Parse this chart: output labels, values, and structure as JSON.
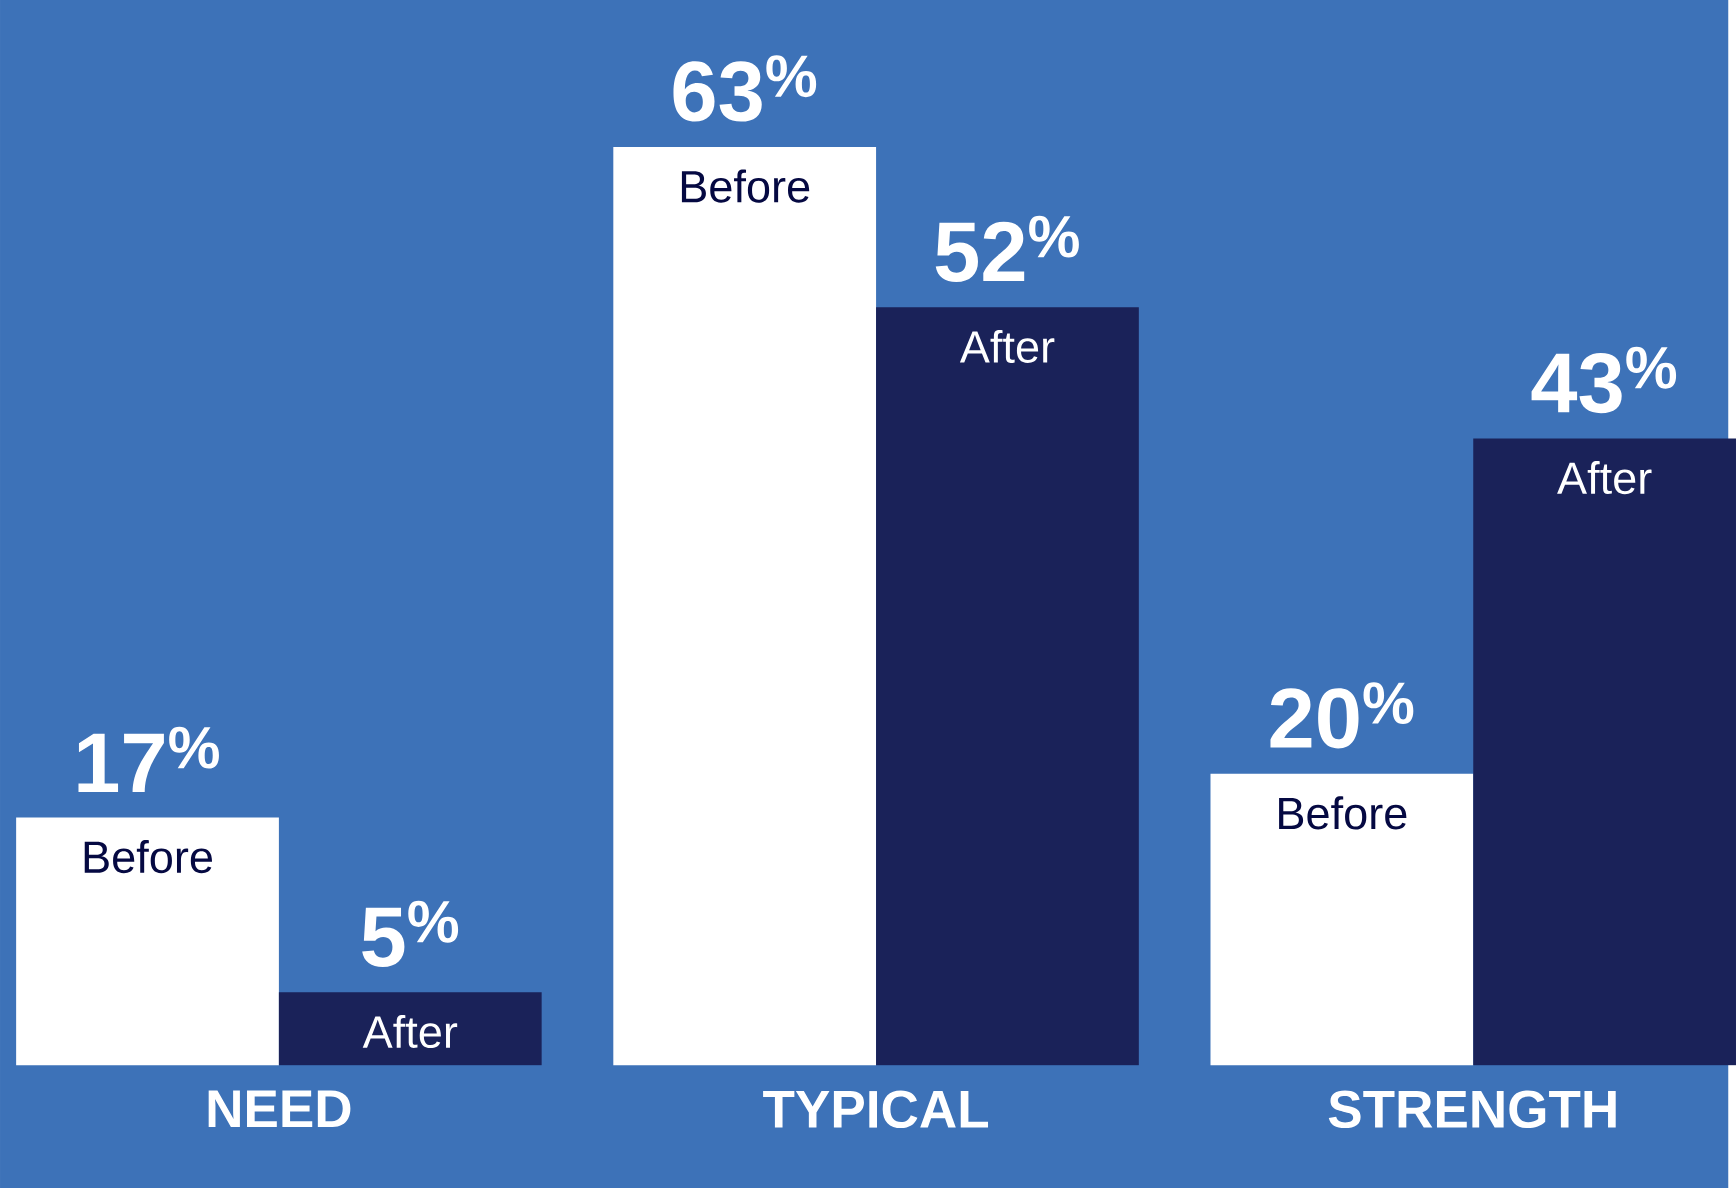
{
  "chart_data": {
    "type": "bar",
    "categories": [
      "NEED",
      "TYPICAL",
      "STRENGTH"
    ],
    "series": [
      {
        "name": "Before",
        "color": "#ffffff",
        "values": [
          17,
          63,
          20
        ],
        "value_labels": [
          "17$^{%}$",
          "63$^{%}$",
          "20$^{%}$"
        ]
      },
      {
        "name": "After",
        "color": "#1a2259",
        "values": [
          5,
          52,
          43
        ],
        "value_labels": [
          "5$^{%}$",
          "52$^{%}$",
          "43$^{%}$"
        ]
      }
    ],
    "legend": false
  }
}
